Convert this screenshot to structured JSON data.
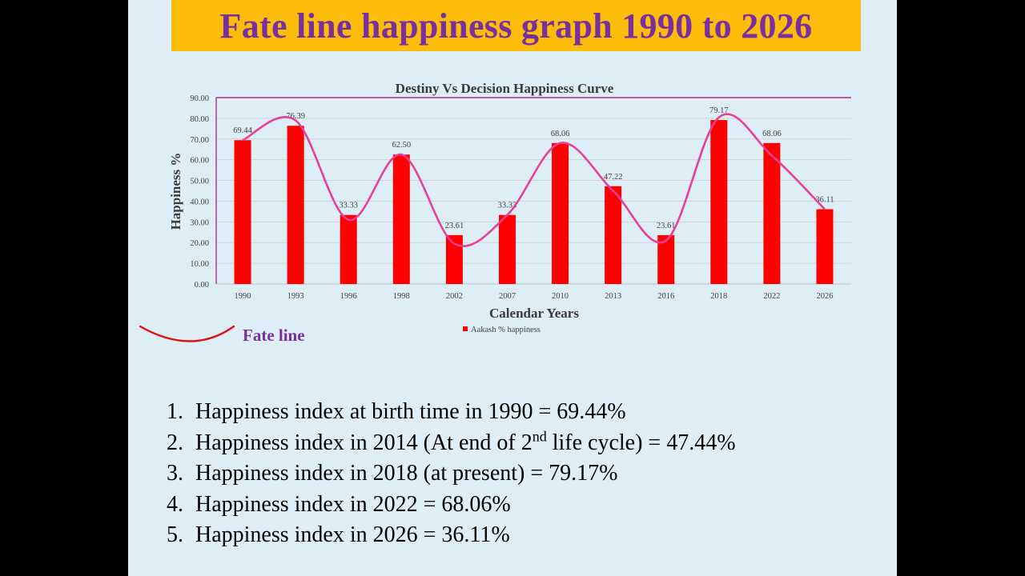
{
  "slide": {
    "title": "Fate line happiness graph 1990 to 2026",
    "fate_label": "Fate line",
    "points": [
      {
        "num": "1.",
        "text": "Happiness index at birth time in 1990 = 69.44%"
      },
      {
        "num": "2.",
        "pre": "Happiness index in 2014 (At end of 2",
        "sup": "nd",
        "post": " life cycle) = 47.44%"
      },
      {
        "num": "3.",
        "text": "Happiness index in 2018 (at present) = 79.17%"
      },
      {
        "num": "4.",
        "text": "Happiness index in 2022 = 68.06%"
      },
      {
        "num": "5.",
        "text": "Happiness index in 2026 = 36.11%"
      }
    ]
  },
  "colors": {
    "slide_bg": "#deeef6",
    "banner": "#fbbd0a",
    "title_text": "#7a2fa0",
    "bar": "#ff0000",
    "curve": "#e8409a",
    "fate_sketch": "#e01010",
    "axis_top": "#b0278a"
  },
  "chart_data": {
    "type": "bar",
    "title": "Destiny Vs Decision Happiness Curve",
    "xlabel": "Calendar Years",
    "ylabel": "Happiness %",
    "ylim": [
      0,
      90
    ],
    "ytick_step": 10,
    "ytick_labels": [
      "0.00",
      "10.00",
      "20.00",
      "30.00",
      "40.00",
      "50.00",
      "60.00",
      "70.00",
      "80.00",
      "90.00"
    ],
    "categories": [
      "1990",
      "1993",
      "1996",
      "1998",
      "2002",
      "2007",
      "2010",
      "2013",
      "2016",
      "2018",
      "2022",
      "2026"
    ],
    "series": [
      {
        "name": "Aakash % happiness",
        "values": [
          69.44,
          76.39,
          33.33,
          62.5,
          23.61,
          33.33,
          68.06,
          47.22,
          23.61,
          79.17,
          68.06,
          36.11
        ],
        "labels": [
          "69.44",
          "76.39",
          "33.33",
          "62.50",
          "23.61",
          "33.33",
          "68.06",
          "47.22",
          "23.61",
          "79.17",
          "68.06",
          "36.11"
        ]
      }
    ],
    "curve": {
      "name": "Fate line",
      "x": [
        0,
        1,
        2,
        3,
        4,
        5,
        6,
        7,
        8,
        9,
        10,
        11
      ],
      "y": [
        69.44,
        79,
        31,
        62.5,
        19.5,
        33.33,
        68.06,
        45,
        21,
        80.5,
        62,
        36.11
      ]
    },
    "legend": "bottom",
    "grid": true
  }
}
